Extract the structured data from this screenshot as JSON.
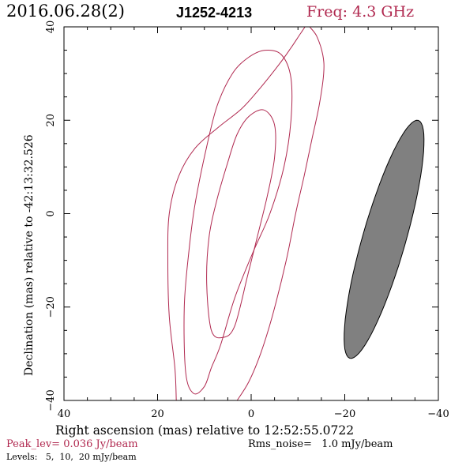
{
  "header": {
    "date": "2016.06.28(2)",
    "source": "J1252-4213",
    "freq": "Freq: 4.3 GHz"
  },
  "axes": {
    "xlabel": "Right ascension (mas) relative to 12:52:55.0722",
    "ylabel": "Declination (mas) relative to -42:13:32.526"
  },
  "footer": {
    "peak": "Peak_lev=  0.036 Jy/beam",
    "rms": "Rms_noise=   1.0 mJy/beam",
    "levels": "Levels:   5,  10,  20 mJy/beam"
  },
  "colors": {
    "contour": "#b0284f",
    "beam_fill": "#808080",
    "title_accent": "#b0284f"
  },
  "chart_data": {
    "type": "contour",
    "xlim": [
      40,
      -40
    ],
    "ylim": [
      -40,
      40
    ],
    "x_ticks": [
      40,
      20,
      0,
      -20,
      -40
    ],
    "y_ticks": [
      -40,
      -20,
      0,
      20,
      40
    ],
    "x_tick_labels": [
      "40",
      "20",
      "0",
      "−20",
      "−40"
    ],
    "y_tick_labels": [
      "−40",
      "−20",
      "0",
      "20",
      "40"
    ],
    "levels_mJy_per_beam": [
      5,
      10,
      20
    ],
    "contours": [
      {
        "level": 5,
        "points": [
          [
            16,
            -40
          ],
          [
            16.3,
            -33
          ],
          [
            17.5,
            -22
          ],
          [
            17.8,
            -10
          ],
          [
            17.5,
            0
          ],
          [
            15.5,
            8
          ],
          [
            12,
            14
          ],
          [
            7,
            18.5
          ],
          [
            2,
            22.5
          ],
          [
            -2,
            27
          ],
          [
            -6,
            32
          ],
          [
            -8.5,
            35.5
          ],
          [
            -10.5,
            38.5
          ],
          [
            -11.5,
            40
          ]
        ],
        "closed": false
      },
      {
        "level": 5,
        "points": [
          [
            -12.5,
            40
          ],
          [
            -14,
            38
          ],
          [
            -15.3,
            34
          ],
          [
            -15.5,
            30
          ],
          [
            -14.5,
            23
          ],
          [
            -13,
            16
          ],
          [
            -11.3,
            8
          ],
          [
            -9.5,
            0
          ],
          [
            -7.5,
            -10
          ],
          [
            -4.5,
            -22
          ],
          [
            -2,
            -30
          ],
          [
            0.5,
            -36
          ],
          [
            3,
            -40
          ]
        ],
        "closed": false
      },
      {
        "level": 10,
        "points": [
          [
            8.5,
            -33
          ],
          [
            10,
            -37
          ],
          [
            12.3,
            -38.5
          ],
          [
            14,
            -34
          ],
          [
            14.3,
            -20
          ],
          [
            13.3,
            -8
          ],
          [
            12,
            2
          ],
          [
            9.8,
            13
          ],
          [
            7.3,
            23
          ],
          [
            4,
            30
          ],
          [
            0.5,
            33.5
          ],
          [
            -3,
            35
          ],
          [
            -6.5,
            34
          ],
          [
            -8.5,
            29
          ],
          [
            -8.5,
            20
          ],
          [
            -7,
            10
          ],
          [
            -4,
            0
          ],
          [
            -0.5,
            -8
          ],
          [
            3.5,
            -18
          ],
          [
            6.5,
            -28
          ]
        ],
        "closed": true
      },
      {
        "level": 20,
        "points": [
          [
            3.5,
            -24
          ],
          [
            6,
            -26.5
          ],
          [
            8.5,
            -25
          ],
          [
            9.5,
            -15
          ],
          [
            9,
            -5
          ],
          [
            7.3,
            3
          ],
          [
            5,
            11
          ],
          [
            3,
            17
          ],
          [
            0.5,
            20.8
          ],
          [
            -2.7,
            22.2
          ],
          [
            -5,
            19
          ],
          [
            -5,
            12
          ],
          [
            -3.5,
            4
          ],
          [
            -1.3,
            -5
          ],
          [
            0.7,
            -13
          ]
        ],
        "closed": true
      }
    ],
    "beam": {
      "center_ra": -28.4,
      "center_dec": -5.5,
      "semi_major_mas": 26.5,
      "semi_minor_mas": 4.6,
      "rotation_deg_ccw_from_x": 74
    }
  }
}
